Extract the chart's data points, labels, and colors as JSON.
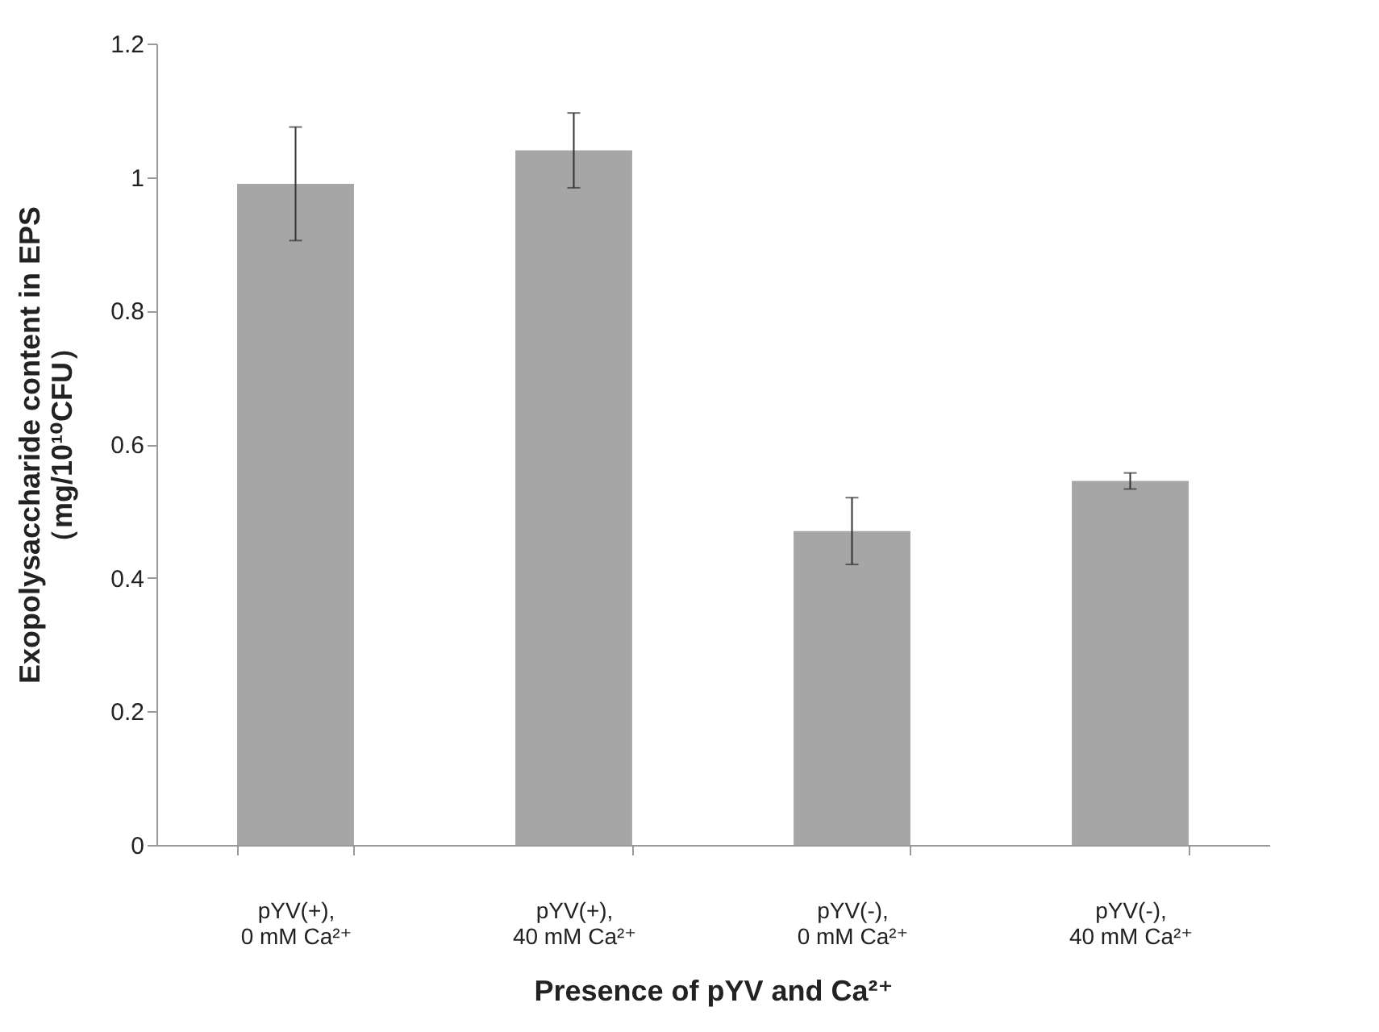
{
  "chart_data": {
    "type": "bar",
    "xlabel": "Presence of pYV and Ca²⁺",
    "ylabel": "Exopolysaccharide content in EPS\n（mg/10¹⁰CFU）",
    "categories": [
      "pYV(+),\n0 mM Ca²⁺",
      "pYV(+),\n40 mM Ca²⁺",
      "pYV(-),\n0 mM Ca²⁺",
      "pYV(-),\n40 mM Ca²⁺"
    ],
    "values": [
      0.99,
      1.04,
      0.47,
      0.545
    ],
    "errors": [
      0.085,
      0.056,
      0.05,
      0.012
    ],
    "color": "#a6a6a6",
    "ylim": [
      0,
      1.2
    ],
    "yticks": [
      0,
      0.2,
      0.4,
      0.6,
      0.8,
      1,
      1.2
    ],
    "grid": false
  }
}
